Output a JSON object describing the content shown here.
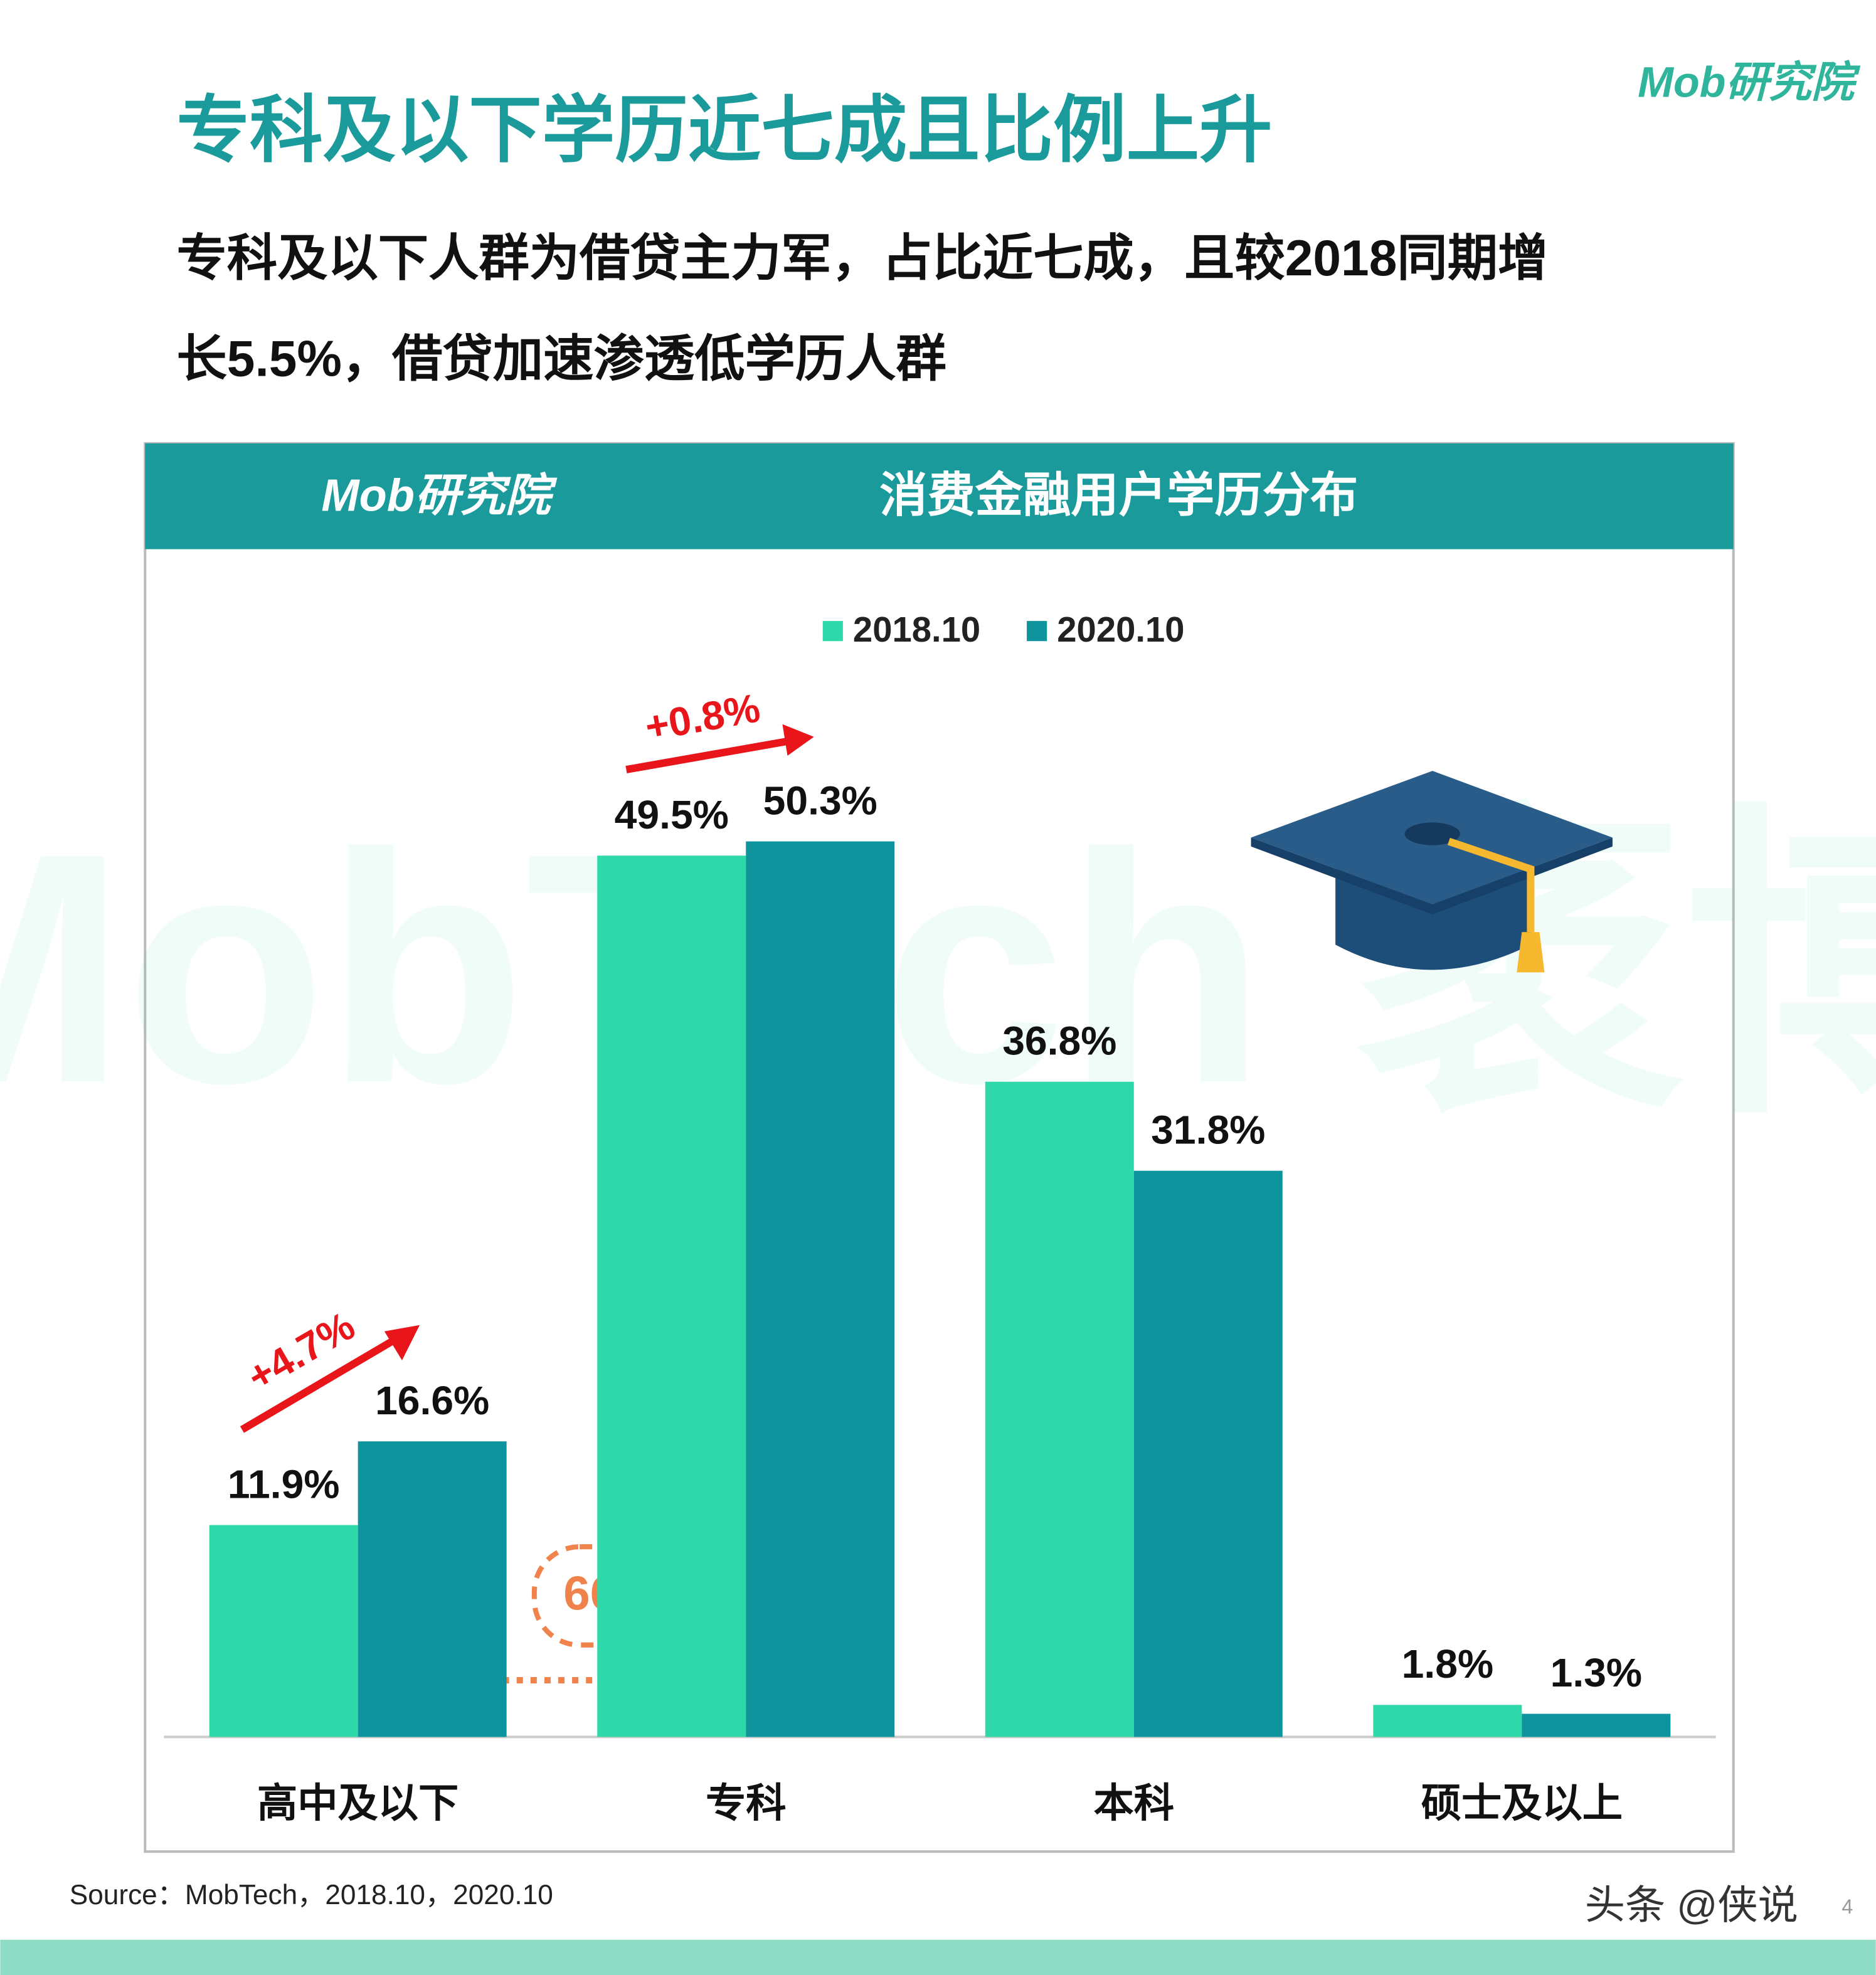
{
  "header": {
    "logo": "Mob研究院",
    "title": "专科及以下学历近七成且比例上升",
    "subtitle_lines": [
      "专科及以下人群为借贷主力军，占比近七成，且较2018同期增",
      "长5.5%，借贷加速渗透低学历人群"
    ]
  },
  "chart_data": {
    "type": "bar",
    "title": "消费金融用户学历分布",
    "logo": "Mob研究院",
    "watermark": "MobTech 袤博",
    "categories": [
      "高中及以下",
      "专科",
      "本科",
      "硕士及以上"
    ],
    "series": [
      {
        "name": "2018.10",
        "color": "#2ed8a8",
        "values": [
          11.9,
          49.5,
          36.8,
          1.8
        ],
        "value_labels": [
          "11.9%",
          "49.5%",
          "36.8%",
          "1.8%"
        ]
      },
      {
        "name": "2020.10",
        "color": "#0e949c",
        "values": [
          16.6,
          50.3,
          31.8,
          1.3
        ],
        "value_labels": [
          "16.6%",
          "50.3%",
          "31.8%",
          "1.3%"
        ]
      }
    ],
    "annotations": [
      "+4.7%",
      "+0.8%",
      "66.9%"
    ]
  },
  "footer": {
    "source": "Source：MobTech，2018.10，2020.10",
    "credit": "头条 @侠说",
    "page": "4"
  }
}
